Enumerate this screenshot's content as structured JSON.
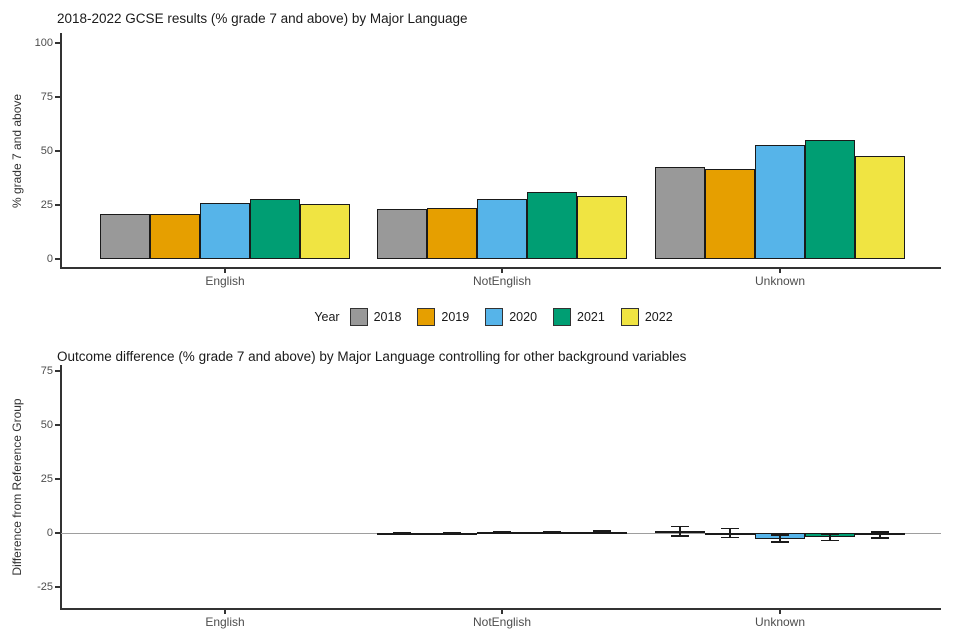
{
  "chart_data": [
    {
      "type": "bar",
      "title": "2018-2022 GCSE results (% grade 7 and above) by Major Language",
      "ylabel": "% grade 7 and above",
      "xlabel": "",
      "categories": [
        "English",
        "NotEnglish",
        "Unknown"
      ],
      "series": [
        {
          "name": "2018",
          "color": "#999999",
          "values": [
            21,
            23,
            42.5
          ]
        },
        {
          "name": "2019",
          "color": "#E69F00",
          "values": [
            21,
            23.5,
            41.5
          ]
        },
        {
          "name": "2020",
          "color": "#56B4E9",
          "values": [
            26,
            28,
            53
          ]
        },
        {
          "name": "2021",
          "color": "#009E73",
          "values": [
            28,
            31,
            55
          ]
        },
        {
          "name": "2022",
          "color": "#F0E442",
          "values": [
            25.5,
            29,
            47.5
          ]
        }
      ],
      "ylim": [
        0,
        105
      ],
      "yticks": [
        0,
        25,
        50,
        75,
        100
      ],
      "grid": false,
      "legend_position": "bottom"
    },
    {
      "type": "bar",
      "title": "Outcome difference (% grade 7 and above) by Major Language controlling for other background variables",
      "ylabel": "Difference from Reference Group",
      "xlabel": "",
      "categories": [
        "English",
        "NotEnglish",
        "Unknown"
      ],
      "series": [
        {
          "name": "2018",
          "color": "#999999",
          "values": [
            0,
            -0.2,
            1.0
          ],
          "ci_low": [
            null,
            -0.5,
            -1.5
          ],
          "ci_high": [
            null,
            0.1,
            3.0
          ]
        },
        {
          "name": "2019",
          "color": "#E69F00",
          "values": [
            0,
            -0.1,
            0.1
          ],
          "ci_low": [
            null,
            -0.5,
            -2.0
          ],
          "ci_high": [
            null,
            0.3,
            2.0
          ]
        },
        {
          "name": "2020",
          "color": "#56B4E9",
          "values": [
            0,
            0.3,
            -2.6
          ],
          "ci_low": [
            null,
            -0.1,
            -4.2
          ],
          "ci_high": [
            null,
            0.7,
            -1.0
          ]
        },
        {
          "name": "2021",
          "color": "#009E73",
          "values": [
            0,
            0.4,
            -2.0
          ],
          "ci_low": [
            null,
            0.0,
            -3.5
          ],
          "ci_high": [
            null,
            0.8,
            -0.8
          ]
        },
        {
          "name": "2022",
          "color": "#F0E442",
          "values": [
            0,
            0.6,
            -0.9
          ],
          "ci_low": [
            null,
            0.2,
            -2.3
          ],
          "ci_high": [
            null,
            1.0,
            0.4
          ]
        }
      ],
      "ylim": [
        -34,
        77
      ],
      "yticks": [
        -25,
        0,
        25,
        50,
        75
      ],
      "zero_line": true,
      "grid": false
    }
  ],
  "legend": {
    "title": "Year",
    "items": [
      {
        "label": "2018",
        "color": "#999999"
      },
      {
        "label": "2019",
        "color": "#E69F00"
      },
      {
        "label": "2020",
        "color": "#56B4E9"
      },
      {
        "label": "2021",
        "color": "#009E73"
      },
      {
        "label": "2022",
        "color": "#F0E442"
      }
    ]
  },
  "colors": {
    "axis": "#333333",
    "tick_label": "#4D4D4D",
    "bar_outline": "#1A1A1A",
    "zero_line": "#9E9E9E"
  }
}
